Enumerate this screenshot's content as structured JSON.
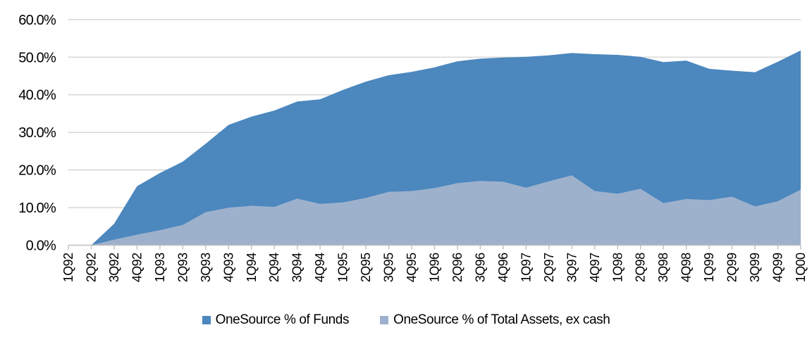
{
  "chart_data": {
    "type": "area",
    "overlap_mode": "overlaid-not-stacked",
    "categories": [
      "1Q92",
      "2Q92",
      "3Q92",
      "4Q92",
      "1Q93",
      "2Q93",
      "3Q93",
      "4Q93",
      "1Q94",
      "2Q94",
      "3Q94",
      "4Q94",
      "1Q95",
      "2Q95",
      "3Q95",
      "4Q95",
      "1Q96",
      "2Q96",
      "3Q96",
      "4Q96",
      "1Q97",
      "2Q97",
      "3Q97",
      "4Q97",
      "1Q98",
      "2Q98",
      "3Q98",
      "4Q98",
      "1Q99",
      "2Q99",
      "3Q99",
      "4Q99",
      "1Q00"
    ],
    "series": [
      {
        "name": "OneSource % of Funds",
        "color": "#4c87be",
        "values": [
          0.0,
          0.0,
          5.7,
          15.7,
          19.2,
          22.2,
          27.0,
          32.0,
          34.2,
          35.8,
          38.2,
          38.8,
          41.3,
          43.5,
          45.2,
          46.1,
          47.3,
          48.9,
          49.6,
          49.9,
          50.1,
          50.5,
          51.1,
          50.8,
          50.6,
          50.1,
          48.7,
          49.1,
          46.9,
          46.4,
          46.0,
          48.8,
          51.8
        ]
      },
      {
        "name": "OneSource % of Total Assets, ex cash",
        "color": "#9db1cd",
        "values": [
          0.0,
          0.0,
          1.5,
          2.8,
          4.0,
          5.4,
          8.8,
          10.0,
          10.5,
          10.2,
          12.4,
          11.0,
          11.4,
          12.6,
          14.2,
          14.4,
          15.2,
          16.5,
          17.1,
          16.9,
          15.3,
          17.0,
          18.6,
          14.4,
          13.7,
          15.0,
          11.2,
          12.3,
          12.0,
          12.9,
          10.3,
          11.7,
          14.8
        ]
      }
    ],
    "title": "",
    "xlabel": "",
    "ylabel": "",
    "y_axis": {
      "min": 0,
      "max": 60,
      "step": 10,
      "tick_labels": [
        "0.0%",
        "10.0%",
        "20.0%",
        "30.0%",
        "40.0%",
        "50.0%",
        "60.0%"
      ]
    },
    "grid": true,
    "legend_position": "bottom",
    "gridline_color": "#d9d9d9",
    "axis_line_color": "#bfbfbf",
    "x_labels_rotated_degrees": 90
  }
}
